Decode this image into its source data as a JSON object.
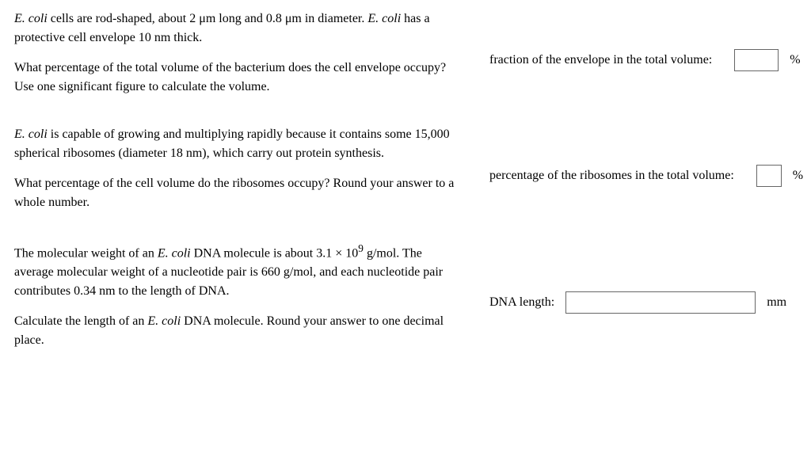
{
  "q1": {
    "para1_a": "E. coli",
    "para1_b": " cells are rod-shaped, about 2 μm long and 0.8 μm in diameter. ",
    "para1_c": "E. coli",
    "para1_d": " has a protective cell envelope 10 nm thick.",
    "para2": "What percentage of the total volume of the bacterium does the cell envelope occupy? Use one significant figure to calculate the volume.",
    "answer_label": "fraction of the envelope in the total volume:",
    "unit": "%"
  },
  "q2": {
    "para1_a": "E. coli",
    "para1_b": " is capable of growing and multiplying rapidly because it contains some 15,000 spherical ribosomes (diameter 18 nm), which carry out protein synthesis.",
    "para2": "What percentage of the cell volume do the ribosomes occupy? Round your answer to a whole number.",
    "answer_label": "percentage of the ribosomes in the total volume:",
    "unit": "%"
  },
  "q3": {
    "para1_a": "The molecular weight of an ",
    "para1_b": "E. coli",
    "para1_c": " DNA molecule is about 3.1 × 10",
    "para1_sup": "9",
    "para1_d": " g/mol. The average molecular weight of a nucleotide pair is 660 g/mol, and each nucleotide pair contributes 0.34 nm to the length of DNA.",
    "para2_a": "Calculate the length of an ",
    "para2_b": "E. coli",
    "para2_c": " DNA molecule. Round your answer to one decimal place.",
    "answer_label": "DNA length:",
    "unit": "mm"
  }
}
